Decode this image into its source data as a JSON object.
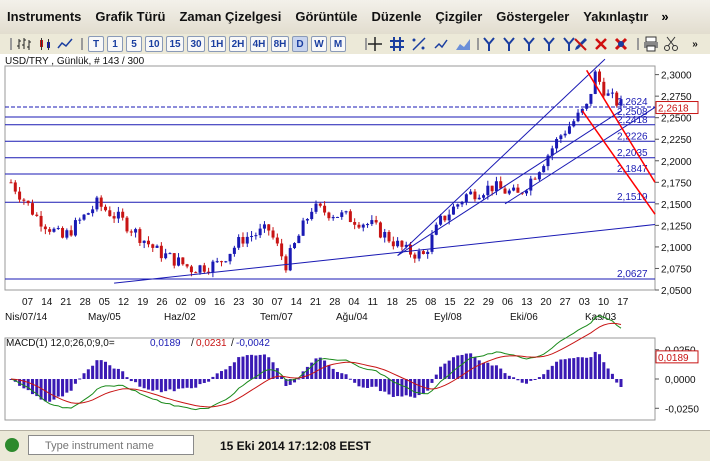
{
  "menu": {
    "items": [
      "Instruments",
      "Grafik Türü",
      "Zaman Çizelgesi",
      "Görüntüle",
      "Düzenle",
      "Çizgiler",
      "Göstergeler",
      "Yakınlaştır"
    ],
    "more": "»"
  },
  "toolbar": {
    "periods": [
      "T",
      "1",
      "5",
      "10",
      "15",
      "30",
      "1H",
      "2H",
      "4H",
      "8H",
      "D",
      "W",
      "M"
    ],
    "active_period": "D",
    "more": "»"
  },
  "chart": {
    "header": "USD/TRY , Günlük, # 143 / 300",
    "price_axis": [
      "2,3000",
      "2,2750",
      "2,2500",
      "2,2250",
      "2,2000",
      "2,1750",
      "2,1500",
      "2,1250",
      "2,1000",
      "2,0750",
      "2,0500"
    ],
    "current_price": "2,2618",
    "levels": [
      "2,2624",
      "2,2508",
      "2,2418",
      "2,2226",
      "2,2035",
      "2,1847",
      "2,1519",
      "2,0627"
    ],
    "x_days": [
      "07",
      "14",
      "21",
      "28",
      "05",
      "12",
      "19",
      "26",
      "02",
      "09",
      "16",
      "23",
      "30",
      "07",
      "14",
      "21",
      "28",
      "04",
      "11",
      "18",
      "25",
      "08",
      "15",
      "22",
      "29",
      "06",
      "13",
      "20",
      "27",
      "03",
      "10",
      "17"
    ],
    "x_months": [
      "Nis/07/14",
      "May/05",
      "Haz/02",
      "Tem/07",
      "Ağu/04",
      "Eyl/08",
      "Eki/06",
      "Kas/03"
    ],
    "colors": {
      "up": "#1a1ab4",
      "down": "#c81414",
      "trend": "#1a1ab4",
      "channel": "#ff0000"
    }
  },
  "macd": {
    "label": "MACD(1) 12,0;26,0;9,0=",
    "value1": "0,0189",
    "value2": "0,0231",
    "value3": "-0,0042",
    "axis": [
      "0,0250",
      "0,0000",
      "-0,0250"
    ],
    "current": "0,0189"
  },
  "status": {
    "search_placeholder": "Type instrument name",
    "time": "15 Eki 2014 17:12:08 EEST"
  }
}
